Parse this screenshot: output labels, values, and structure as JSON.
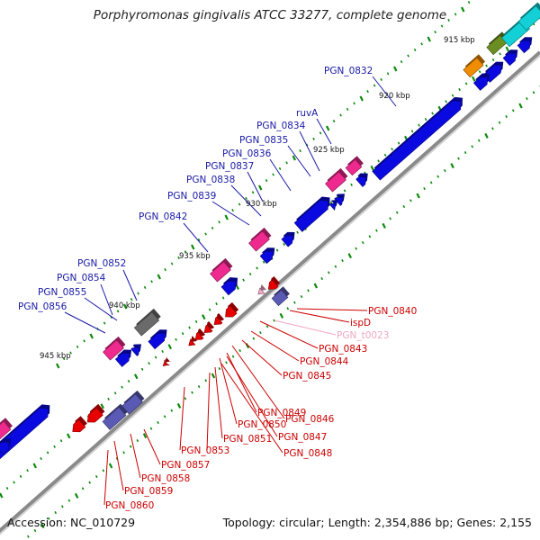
{
  "title": "Porphyromonas gingivalis ATCC 33277, complete genome",
  "footer": {
    "accession": "Accession: NC_010729",
    "summary": "Topology: circular; Length: 2,354,886 bp; Genes: 2,155"
  },
  "colors": {
    "blue_gene": "#0a0ae0",
    "red_gene": "#e80000",
    "magenta": "#ee2a8e",
    "gray": "#6a6a6a",
    "purple": "#5a5ab4",
    "orange": "#f08c00",
    "olive": "#6b8e23",
    "cyan": "#12d0d6",
    "tick": "#0b8a0b",
    "backbone": "#8a8a8a"
  },
  "scale_labels": [
    {
      "text": "915 kbp"
    },
    {
      "text": "920 kbp"
    },
    {
      "text": "925 kbp"
    },
    {
      "text": "930 kbp"
    },
    {
      "text": "935 kbp"
    },
    {
      "text": "940 kbp"
    },
    {
      "text": "945 kbp"
    }
  ],
  "forward_labels": [
    {
      "text": "PGN_0832"
    },
    {
      "text": "ruvA"
    },
    {
      "text": "PGN_0834"
    },
    {
      "text": "PGN_0835"
    },
    {
      "text": "PGN_0836"
    },
    {
      "text": "PGN_0837"
    },
    {
      "text": "PGN_0838"
    },
    {
      "text": "PGN_0839"
    },
    {
      "text": "PGN_0842"
    },
    {
      "text": "PGN_0852"
    },
    {
      "text": "PGN_0854"
    },
    {
      "text": "PGN_0855"
    },
    {
      "text": "PGN_0856"
    }
  ],
  "reverse_labels": [
    {
      "text": "PGN_0840"
    },
    {
      "text": "ispD"
    },
    {
      "text": "PGN_t0023"
    },
    {
      "text": "PGN_0843"
    },
    {
      "text": "PGN_0844"
    },
    {
      "text": "PGN_0845"
    },
    {
      "text": "PGN_0846"
    },
    {
      "text": "PGN_0849"
    },
    {
      "text": "PGN_0847"
    },
    {
      "text": "PGN_0850"
    },
    {
      "text": "PGN_0848"
    },
    {
      "text": "PGN_0851"
    },
    {
      "text": "PGN_0853"
    },
    {
      "text": "PGN_0857"
    },
    {
      "text": "PGN_0858"
    },
    {
      "text": "PGN_0859"
    },
    {
      "text": "PGN_0860"
    }
  ]
}
